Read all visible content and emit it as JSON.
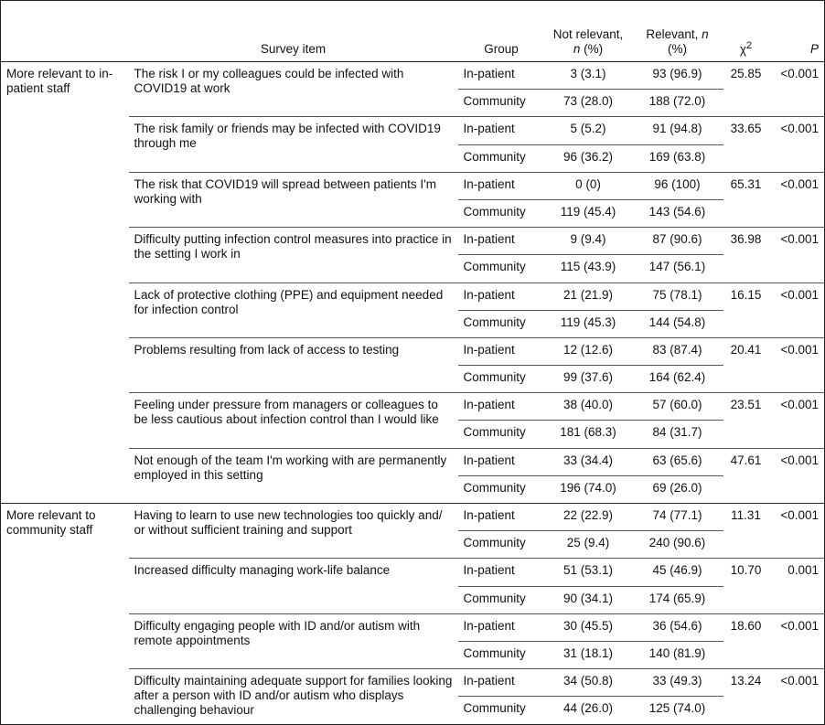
{
  "header": {
    "survey_item": "Survey item",
    "group": "Group",
    "not_relevant": [
      "Not relevant,",
      "n",
      "(%)"
    ],
    "relevant": [
      "Relevant,",
      "n",
      "(%)"
    ],
    "chi2": [
      "χ",
      "2"
    ],
    "p": "P"
  },
  "sections": [
    {
      "label": "More relevant to in-patient staff",
      "items": [
        {
          "text": "The risk I or my colleagues could be infected with COVID19 at work",
          "rows": [
            [
              "In-patient",
              "3 (3.1)",
              "93 (96.9)"
            ],
            [
              "Community",
              "73 (28.0)",
              "188 (72.0)"
            ]
          ],
          "chi2": "25.85",
          "p": "<0.001"
        },
        {
          "text": "The risk family or friends may be infected with COVID19 through me",
          "rows": [
            [
              "In-patient",
              "5 (5.2)",
              "91 (94.8)"
            ],
            [
              "Community",
              "96 (36.2)",
              "169 (63.8)"
            ]
          ],
          "chi2": "33.65",
          "p": "<0.001"
        },
        {
          "text": "The risk that COVID19 will spread between patients I'm working with",
          "rows": [
            [
              "In-patient",
              "0 (0)",
              "96 (100)"
            ],
            [
              "Community",
              "119 (45.4)",
              "143 (54.6)"
            ]
          ],
          "chi2": "65.31",
          "p": "<0.001"
        },
        {
          "text": "Difficulty putting infection control measures into practice in the setting I work in",
          "rows": [
            [
              "In-patient",
              "9 (9.4)",
              "87 (90.6)"
            ],
            [
              "Community",
              "115 (43.9)",
              "147 (56.1)"
            ]
          ],
          "chi2": "36.98",
          "p": "<0.001"
        },
        {
          "text": "Lack of protective clothing (PPE) and equipment needed for infection control",
          "rows": [
            [
              "In-patient",
              "21 (21.9)",
              "75 (78.1)"
            ],
            [
              "Community",
              "119 (45.3)",
              "144 (54.8)"
            ]
          ],
          "chi2": "16.15",
          "p": "<0.001"
        },
        {
          "text": "Problems resulting from lack of access to testing",
          "rows": [
            [
              "In-patient",
              "12 (12.6)",
              "83 (87.4)"
            ],
            [
              "Community",
              "99 (37.6)",
              "164 (62.4)"
            ]
          ],
          "chi2": "20.41",
          "p": "<0.001"
        },
        {
          "text": "Feeling under pressure from managers or colleagues to be less cautious about infection control than I would like",
          "rows": [
            [
              "In-patient",
              "38 (40.0)",
              "57 (60.0)"
            ],
            [
              "Community",
              "181 (68.3)",
              "84 (31.7)"
            ]
          ],
          "chi2": "23.51",
          "p": "<0.001"
        },
        {
          "text": "Not enough of the team I'm working with are permanently employed in this setting",
          "rows": [
            [
              "In-patient",
              "33 (34.4)",
              "63 (65.6)"
            ],
            [
              "Community",
              "196 (74.0)",
              "69 (26.0)"
            ]
          ],
          "chi2": "47.61",
          "p": "<0.001"
        }
      ]
    },
    {
      "label": "More relevant to community staff",
      "items": [
        {
          "text": "Having to learn to use new technologies too quickly and/ or without sufficient training and support",
          "rows": [
            [
              "In-patient",
              "22 (22.9)",
              "74 (77.1)"
            ],
            [
              "Community",
              "25 (9.4)",
              "240 (90.6)"
            ]
          ],
          "chi2": "11.31",
          "p": "<0.001"
        },
        {
          "text": "Increased difficulty managing work-life balance",
          "rows": [
            [
              "In-patient",
              "51 (53.1)",
              "45 (46.9)"
            ],
            [
              "Community",
              "90 (34.1)",
              "174 (65.9)"
            ]
          ],
          "chi2": "10.70",
          "p": "0.001"
        },
        {
          "text": "Difficulty engaging people with ID and/or autism with remote appointments",
          "rows": [
            [
              "In-patient",
              "30 (45.5)",
              "36 (54.6)"
            ],
            [
              "Community",
              "31 (18.1)",
              "140 (81.9)"
            ]
          ],
          "chi2": "18.60",
          "p": "<0.001"
        },
        {
          "text": "Difficulty maintaining adequate support for families looking after a person with ID and/or autism who displays challenging behaviour",
          "rows": [
            [
              "In-patient",
              "34 (50.8)",
              "33 (49.3)"
            ],
            [
              "Community",
              "44 (26.0)",
              "125 (74.0)"
            ]
          ],
          "chi2": "13.24",
          "p": "<0.001"
        }
      ]
    }
  ]
}
